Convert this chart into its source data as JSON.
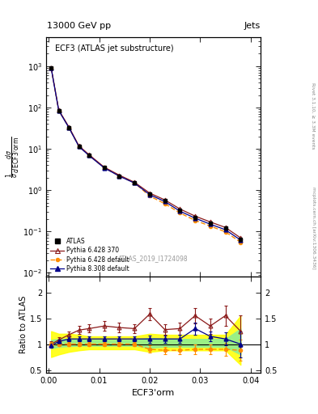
{
  "title_top": "13000 GeV pp",
  "title_right": "Jets",
  "plot_title": "ECF3 (ATLAS jet substructure)",
  "xlabel": "ECF3'orm",
  "ylabel_ratio": "Ratio to ATLAS",
  "watermark": "ATLAS_2019_I1724098",
  "rivet_text": "Rivet 3.1.10, ≥ 3.3M events",
  "arxiv_text": "mcplots.cern.ch [arXiv:1306.3436]",
  "x_main": [
    0.0005,
    0.002,
    0.004,
    0.006,
    0.008,
    0.011,
    0.014,
    0.017,
    0.02,
    0.023,
    0.026,
    0.029,
    0.032,
    0.035,
    0.038
  ],
  "atlas_y": [
    900,
    85,
    33,
    11.5,
    7.0,
    3.5,
    2.2,
    1.5,
    0.8,
    0.55,
    0.33,
    0.22,
    0.16,
    0.12,
    0.065
  ],
  "atlas_yerr": [
    50,
    5,
    2,
    0.8,
    0.5,
    0.25,
    0.15,
    0.1,
    0.06,
    0.04,
    0.025,
    0.018,
    0.013,
    0.01,
    0.006
  ],
  "py6_370_y": [
    920,
    87,
    34,
    11.8,
    7.2,
    3.6,
    2.3,
    1.55,
    0.85,
    0.58,
    0.35,
    0.235,
    0.17,
    0.125,
    0.07
  ],
  "py6_def_y": [
    900,
    85,
    33,
    11.5,
    7.0,
    3.5,
    2.2,
    1.5,
    0.72,
    0.47,
    0.28,
    0.185,
    0.135,
    0.098,
    0.055
  ],
  "py8_def_y": [
    895,
    84,
    32.5,
    11.3,
    6.85,
    3.45,
    2.18,
    1.48,
    0.78,
    0.53,
    0.31,
    0.21,
    0.15,
    0.11,
    0.062
  ],
  "ratio_x": [
    0.0005,
    0.002,
    0.004,
    0.006,
    0.008,
    0.011,
    0.014,
    0.017,
    0.02,
    0.023,
    0.026,
    0.029,
    0.032,
    0.035,
    0.038
  ],
  "py6_370_ratio": [
    1.0,
    1.08,
    1.18,
    1.27,
    1.3,
    1.35,
    1.32,
    1.3,
    1.58,
    1.28,
    1.3,
    1.55,
    1.35,
    1.55,
    1.25
  ],
  "py6_def_ratio": [
    1.0,
    1.0,
    1.0,
    1.0,
    1.0,
    1.0,
    1.0,
    1.0,
    0.9,
    0.88,
    0.88,
    0.9,
    0.9,
    0.9,
    0.88
  ],
  "py8_def_ratio": [
    0.97,
    1.05,
    1.1,
    1.1,
    1.1,
    1.1,
    1.1,
    1.1,
    1.1,
    1.1,
    1.1,
    1.3,
    1.15,
    1.1,
    1.0
  ],
  "py6_370_ratio_err": [
    0.05,
    0.06,
    0.07,
    0.08,
    0.08,
    0.09,
    0.09,
    0.09,
    0.12,
    0.1,
    0.12,
    0.15,
    0.15,
    0.2,
    0.3
  ],
  "py6_def_ratio_err": [
    0.04,
    0.04,
    0.04,
    0.04,
    0.04,
    0.04,
    0.04,
    0.04,
    0.07,
    0.07,
    0.08,
    0.1,
    0.1,
    0.12,
    0.2
  ],
  "py8_def_ratio_err": [
    0.04,
    0.04,
    0.05,
    0.05,
    0.05,
    0.05,
    0.05,
    0.05,
    0.07,
    0.07,
    0.08,
    0.12,
    0.1,
    0.12,
    0.25
  ],
  "band_yellow_lo": [
    0.75,
    0.8,
    0.85,
    0.88,
    0.9,
    0.9,
    0.9,
    0.9,
    0.85,
    0.88,
    0.88,
    0.88,
    0.88,
    0.88,
    0.6
  ],
  "band_yellow_hi": [
    1.25,
    1.2,
    1.2,
    1.18,
    1.15,
    1.15,
    1.15,
    1.15,
    1.2,
    1.18,
    1.18,
    1.18,
    1.18,
    1.18,
    1.55
  ],
  "band_green_lo": [
    0.92,
    0.95,
    0.96,
    0.97,
    0.97,
    0.97,
    0.97,
    0.97,
    0.93,
    0.95,
    0.95,
    0.95,
    0.95,
    0.95,
    0.8
  ],
  "band_green_hi": [
    1.08,
    1.1,
    1.1,
    1.09,
    1.08,
    1.08,
    1.08,
    1.08,
    1.12,
    1.1,
    1.1,
    1.1,
    1.1,
    1.1,
    1.3
  ],
  "color_py6_370": "#8B1A1A",
  "color_py6_def": "#FF8C00",
  "color_py8_def": "#00008B",
  "color_atlas": "#000000",
  "color_yellow": "#FFFF00",
  "color_green": "#90EE90",
  "ylim_main": [
    0.008,
    5000
  ],
  "xlim": [
    -0.0005,
    0.042
  ],
  "ylim_ratio": [
    0.45,
    2.3
  ]
}
